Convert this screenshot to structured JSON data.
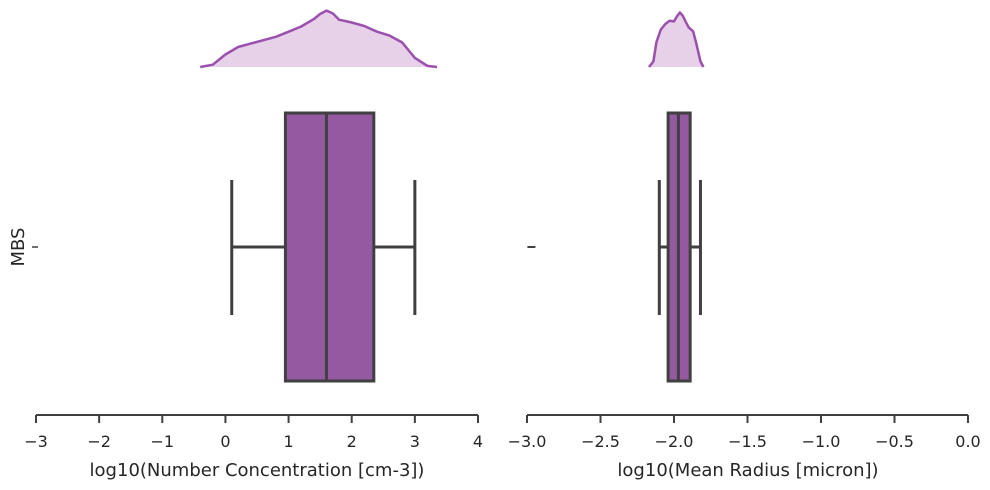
{
  "colors": {
    "box_fill": "#9459a0",
    "box_edge": "#404040",
    "kde_line": "#9b4fae",
    "kde_fill": "#e7d1e8",
    "axis": "#404040",
    "text": "#262626"
  },
  "chart_data": [
    {
      "type": "boxplot",
      "category_label": "MBS",
      "categories": [
        "MBS"
      ],
      "xlabel": "log10(Number Concentration [cm-3])",
      "xlim": [
        -3,
        4
      ],
      "xticks": [
        -3,
        -2,
        -1,
        0,
        1,
        2,
        3,
        4
      ],
      "xtick_labels": [
        "−3",
        "−2",
        "−1",
        "0",
        "1",
        "2",
        "3",
        "4"
      ],
      "box": {
        "whisker_low": 0.1,
        "q1": 0.95,
        "median": 1.6,
        "q3": 2.35,
        "whisker_high": 3.0
      },
      "kde": {
        "x": [
          -0.4,
          -0.2,
          0.0,
          0.2,
          0.4,
          0.6,
          0.8,
          1.0,
          1.2,
          1.4,
          1.5,
          1.6,
          1.7,
          1.8,
          2.0,
          2.2,
          2.4,
          2.6,
          2.8,
          3.0,
          3.2,
          3.35
        ],
        "y": [
          0.0,
          0.04,
          0.22,
          0.35,
          0.41,
          0.47,
          0.53,
          0.62,
          0.71,
          0.84,
          0.93,
          0.99,
          0.94,
          0.83,
          0.78,
          0.72,
          0.62,
          0.55,
          0.43,
          0.16,
          0.02,
          0.0
        ]
      }
    },
    {
      "type": "boxplot",
      "categories": [
        "MBS"
      ],
      "xlabel": "log10(Mean Radius [micron])",
      "xlim": [
        -3.0,
        0.0
      ],
      "xticks": [
        -3.0,
        -2.5,
        -2.0,
        -1.5,
        -1.0,
        -0.5,
        0.0
      ],
      "xtick_labels": [
        "−3.0",
        "−2.5",
        "−2.0",
        "−1.5",
        "−1.0",
        "−0.5",
        "0.0"
      ],
      "box": {
        "whisker_low": -2.1,
        "q1": -2.04,
        "median": -1.97,
        "q3": -1.89,
        "whisker_high": -1.82
      },
      "outliers": [
        -2.97
      ],
      "kde": {
        "x": [
          -2.17,
          -2.14,
          -2.12,
          -2.09,
          -2.06,
          -2.03,
          -2.0,
          -1.98,
          -1.96,
          -1.94,
          -1.92,
          -1.9,
          -1.87,
          -1.85,
          -1.82,
          -1.8
        ],
        "y": [
          0.0,
          0.1,
          0.45,
          0.68,
          0.78,
          0.84,
          0.83,
          0.92,
          0.99,
          0.93,
          0.82,
          0.72,
          0.65,
          0.45,
          0.1,
          0.0
        ]
      }
    }
  ]
}
